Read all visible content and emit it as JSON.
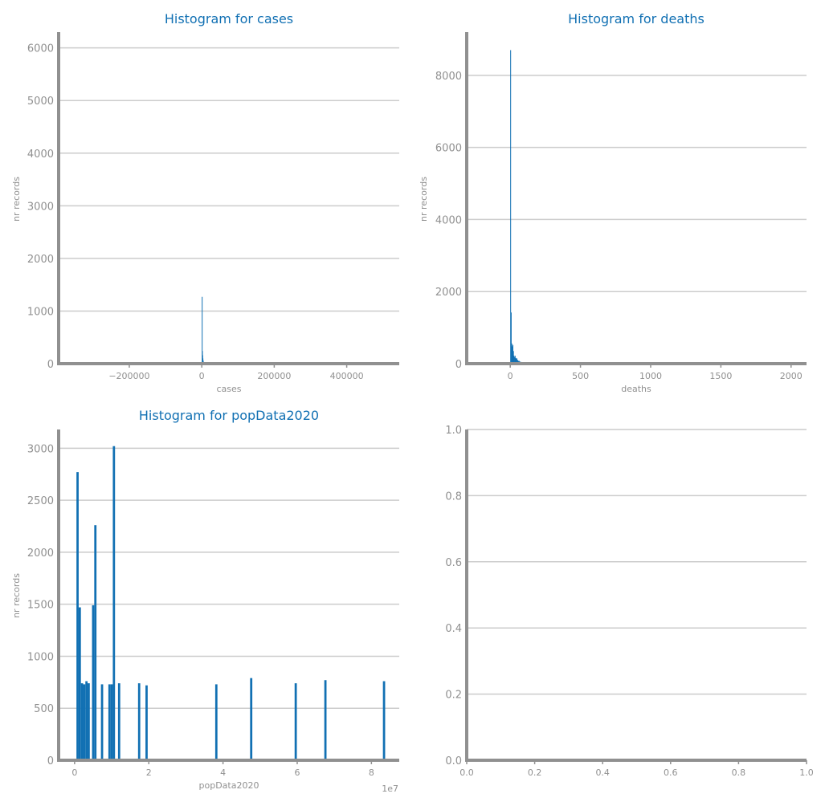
{
  "colors": {
    "bar": "#1170b3",
    "title": "#1170b3",
    "axis": "#909090",
    "grid": "#cccccc",
    "text": "#909090"
  },
  "chart_data": [
    {
      "type": "bar",
      "title": "Histogram for cases",
      "xlabel": "cases",
      "ylabel": "nr records",
      "xlim": [
        -395000,
        545000
      ],
      "ylim": [
        0,
        6300
      ],
      "xticks": [
        -200000,
        0,
        200000,
        400000
      ],
      "xtick_labels": [
        "−200000",
        "0",
        "200000",
        "400000"
      ],
      "yticks": [
        0,
        1000,
        2000,
        3000,
        4000,
        5000,
        6000
      ],
      "ytick_labels": [
        "0",
        "1000",
        "2000",
        "3000",
        "4000",
        "5000",
        "6000"
      ],
      "offset_label": "",
      "bin_width": 700,
      "x": [
        0,
        700,
        1400,
        2100,
        2800,
        3500,
        4200,
        5000
      ],
      "values": [
        1270,
        240,
        160,
        100,
        60,
        35,
        20,
        10
      ]
    },
    {
      "type": "bar",
      "title": "Histogram for deaths",
      "xlabel": "deaths",
      "ylabel": "nr records",
      "xlim": [
        -310,
        2110
      ],
      "ylim": [
        0,
        9200
      ],
      "xticks": [
        0,
        500,
        1000,
        1500,
        2000
      ],
      "xtick_labels": [
        "0",
        "500",
        "1000",
        "1500",
        "2000"
      ],
      "yticks": [
        0,
        2000,
        4000,
        6000,
        8000
      ],
      "ytick_labels": [
        "0",
        "2000",
        "4000",
        "6000",
        "8000"
      ],
      "offset_label": "",
      "bin_width": 4,
      "x": [
        0,
        4,
        8,
        12,
        16,
        20,
        24,
        28,
        32,
        36,
        40,
        44,
        48,
        52,
        56,
        60,
        64,
        68,
        72,
        76,
        80,
        84,
        88,
        92,
        96
      ],
      "values": [
        8700,
        1420,
        560,
        480,
        520,
        350,
        220,
        180,
        220,
        160,
        140,
        150,
        110,
        90,
        70,
        80,
        60,
        50,
        50,
        40,
        40,
        30,
        30,
        20,
        20
      ]
    },
    {
      "type": "bar",
      "title": "Histogram for popData2020",
      "xlabel": "popData2020",
      "ylabel": "nr records",
      "xlim": [
        -4300000,
        87500000
      ],
      "ylim": [
        0,
        3180
      ],
      "xticks": [
        0,
        20000000,
        40000000,
        60000000,
        80000000
      ],
      "xtick_labels": [
        "0",
        "2",
        "4",
        "6",
        "8"
      ],
      "yticks": [
        0,
        500,
        1000,
        1500,
        2000,
        2500,
        3000
      ],
      "ytick_labels": [
        "0",
        "500",
        "1000",
        "1500",
        "2000",
        "2500",
        "3000"
      ],
      "offset_label": "1e7",
      "bin_width": 600000,
      "x": [
        500000,
        1100000,
        1700000,
        2300000,
        2900000,
        3500000,
        4100000,
        4700000,
        5300000,
        5900000,
        7100000,
        9100000,
        9700000,
        10300000,
        10900000,
        11700000,
        17100000,
        19100000,
        37900000,
        47300000,
        59300000,
        67300000,
        83100000
      ],
      "values": [
        2770,
        1470,
        740,
        730,
        760,
        740,
        0,
        1490,
        2260,
        0,
        730,
        730,
        730,
        3020,
        0,
        740,
        740,
        720,
        730,
        790,
        740,
        770,
        760
      ]
    },
    {
      "type": "bar",
      "title": "",
      "xlabel": "",
      "ylabel": "",
      "xlim": [
        0,
        1
      ],
      "ylim": [
        0,
        1
      ],
      "xticks": [
        0,
        0.2,
        0.4,
        0.6,
        0.8,
        1.0
      ],
      "xtick_labels": [
        "0.0",
        "0.2",
        "0.4",
        "0.6",
        "0.8",
        "1.0"
      ],
      "yticks": [
        0,
        0.2,
        0.4,
        0.6,
        0.8,
        1.0
      ],
      "ytick_labels": [
        "0.0",
        "0.2",
        "0.4",
        "0.6",
        "0.8",
        "1.0"
      ],
      "offset_label": "",
      "bin_width": 0,
      "x": [],
      "values": []
    }
  ]
}
